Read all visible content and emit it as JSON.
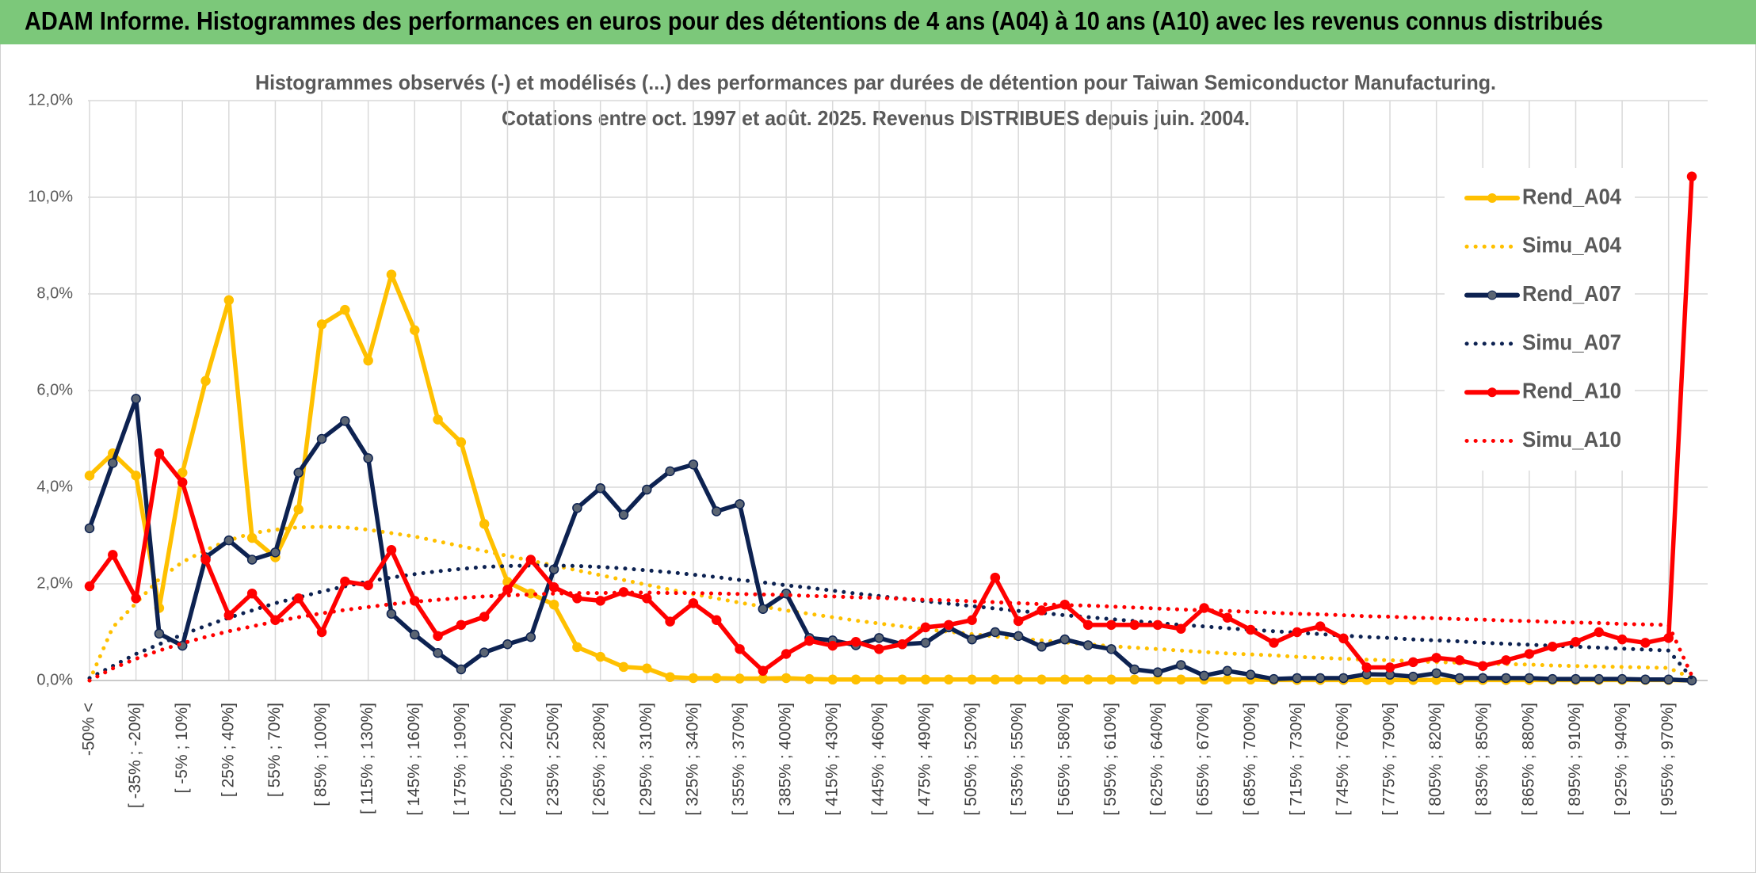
{
  "header": {
    "title": "ADAM Informe. Histogrammes des performances en euros pour des détentions de 4 ans (A04) à 10 ans (A10) avec les revenus connus distribués"
  },
  "chart_data": {
    "type": "line",
    "title": [
      "Histogrammes observés (-) et modélisés (...) des performances par durées de détention pour Taiwan Semiconductor Manufacturing.",
      "Cotations entre oct. 1997 et août. 2025. Revenus DISTRIBUES depuis juin. 2004."
    ],
    "categories": [
      "-50% <",
      null,
      "[ -35% ; -20%]",
      null,
      "[ -5% ; 10%]",
      null,
      "[ 25% ; 40%]",
      null,
      "[ 55% ; 70%]",
      null,
      "[ 85% ; 100%]",
      null,
      "[ 115% ; 130%]",
      null,
      "[ 145% ; 160%]",
      null,
      "[ 175% ; 190%]",
      null,
      "[ 205% ; 220%]",
      null,
      "[ 235% ; 250%]",
      null,
      "[ 265% ; 280%]",
      null,
      "[ 295% ; 310%]",
      null,
      "[ 325% ; 340%]",
      null,
      "[ 355% ; 370%]",
      null,
      "[ 385% ; 400%]",
      null,
      "[ 415% ; 430%]",
      null,
      "[ 445% ; 460%]",
      null,
      "[ 475% ; 490%]",
      null,
      "[ 505% ; 520%]",
      null,
      "[ 535% ; 550%]",
      null,
      "[ 565% ; 580%]",
      null,
      "[ 595% ; 610%]",
      null,
      "[ 625% ; 640%]",
      null,
      "[ 655% ; 670%]",
      null,
      "[ 685% ; 700%]",
      null,
      "[ 715% ; 730%]",
      null,
      "[ 745% ; 760%]",
      null,
      "[ 775% ; 790%]",
      null,
      "[ 805% ; 820%]",
      null,
      "[ 835% ; 850%]",
      null,
      "[ 865% ; 880%]",
      null,
      "[ 895% ; 910%]",
      null,
      "[ 925% ; 940%]",
      null,
      "[ 955% ; 970%]",
      null
    ],
    "ylim": [
      0,
      12
    ],
    "yticks": [
      {
        "value": 0,
        "label": "0,0%"
      },
      {
        "value": 2,
        "label": "2,0%"
      },
      {
        "value": 4,
        "label": "4,0%"
      },
      {
        "value": 6,
        "label": "6,0%"
      },
      {
        "value": 8,
        "label": "8,0%"
      },
      {
        "value": 10,
        "label": "10,0%"
      },
      {
        "value": 12,
        "label": "12,0%"
      }
    ],
    "grid": true,
    "legend": "right",
    "series": [
      {
        "name": "Rend_A04",
        "color": "#ffc000",
        "dash": "solid",
        "values": [
          4.24,
          4.7,
          4.24,
          1.5,
          4.3,
          6.2,
          7.87,
          2.95,
          2.55,
          3.54,
          7.37,
          7.67,
          6.62,
          8.4,
          7.25,
          5.4,
          4.93,
          3.24,
          2.04,
          1.8,
          1.57,
          0.69,
          0.49,
          0.28,
          0.25,
          0.07,
          0.05,
          0.05,
          0.04,
          0.04,
          0.05,
          0.03,
          0.02,
          0.02,
          0.02,
          0.02,
          0.02,
          0.02,
          0.02,
          0.02,
          0.02,
          0.02,
          0.02,
          0.02,
          0.02,
          0.02,
          0.02,
          0.02,
          0.02,
          0.02,
          0.02,
          0.01,
          0.01,
          0.01,
          0.01,
          0.01,
          0.01,
          0.01,
          0.01,
          0.01,
          0.01,
          0.01,
          0.01,
          0.01,
          0.01,
          0.01,
          0.01,
          0.01,
          0.01,
          0
        ]
      },
      {
        "name": "Simu_A04",
        "color": "#ffc000",
        "dash": "dotted",
        "values": [
          0,
          1.1,
          1.6,
          2.1,
          2.45,
          2.7,
          2.9,
          3.05,
          3.12,
          3.17,
          3.18,
          3.17,
          3.12,
          3.05,
          2.98,
          2.88,
          2.78,
          2.68,
          2.58,
          2.48,
          2.38,
          2.28,
          2.18,
          2.08,
          1.98,
          1.88,
          1.79,
          1.7,
          1.61,
          1.53,
          1.45,
          1.38,
          1.31,
          1.24,
          1.18,
          1.12,
          1.06,
          1.01,
          0.96,
          0.91,
          0.87,
          0.83,
          0.79,
          0.75,
          0.71,
          0.68,
          0.65,
          0.62,
          0.59,
          0.56,
          0.54,
          0.52,
          0.49,
          0.47,
          0.45,
          0.43,
          0.42,
          0.4,
          0.38,
          0.37,
          0.35,
          0.34,
          0.33,
          0.31,
          0.3,
          0.29,
          0.28,
          0.27,
          0.26,
          0.05
        ]
      },
      {
        "name": "Rend_A07",
        "color": "#0d2251",
        "dash": "solid",
        "values": [
          3.15,
          4.5,
          5.83,
          0.97,
          0.72,
          2.55,
          2.9,
          2.5,
          2.65,
          4.3,
          5.0,
          5.37,
          4.6,
          1.38,
          0.95,
          0.57,
          0.23,
          0.58,
          0.75,
          0.9,
          2.3,
          3.57,
          3.98,
          3.43,
          3.95,
          4.33,
          4.47,
          3.5,
          3.65,
          1.48,
          1.8,
          0.88,
          0.83,
          0.73,
          0.88,
          0.75,
          0.78,
          1.1,
          0.85,
          1.0,
          0.92,
          0.7,
          0.85,
          0.73,
          0.65,
          0.23,
          0.17,
          0.32,
          0.1,
          0.2,
          0.12,
          0.03,
          0.05,
          0.05,
          0.05,
          0.13,
          0.12,
          0.08,
          0.15,
          0.05,
          0.05,
          0.05,
          0.05,
          0.03,
          0.03,
          0.03,
          0.03,
          0.02,
          0.02,
          0
        ]
      },
      {
        "name": "Simu_A07",
        "color": "#0d2251",
        "dash": "dotted",
        "values": [
          0.05,
          0.3,
          0.55,
          0.75,
          0.95,
          1.13,
          1.3,
          1.45,
          1.6,
          1.72,
          1.84,
          1.95,
          2.05,
          2.13,
          2.2,
          2.26,
          2.31,
          2.35,
          2.37,
          2.38,
          2.38,
          2.37,
          2.35,
          2.32,
          2.28,
          2.24,
          2.19,
          2.14,
          2.08,
          2.03,
          1.97,
          1.92,
          1.86,
          1.8,
          1.75,
          1.69,
          1.64,
          1.59,
          1.54,
          1.49,
          1.44,
          1.4,
          1.35,
          1.31,
          1.27,
          1.23,
          1.19,
          1.15,
          1.12,
          1.08,
          1.05,
          1.02,
          0.99,
          0.96,
          0.93,
          0.9,
          0.88,
          0.85,
          0.83,
          0.81,
          0.78,
          0.76,
          0.74,
          0.72,
          0.7,
          0.68,
          0.66,
          0.64,
          0.62,
          0.05
        ]
      },
      {
        "name": "Rend_A10",
        "color": "#ff0000",
        "dash": "solid",
        "values": [
          1.95,
          2.6,
          1.7,
          4.7,
          4.1,
          2.5,
          1.35,
          1.8,
          1.25,
          1.7,
          1.0,
          2.05,
          1.97,
          2.7,
          1.65,
          0.92,
          1.15,
          1.32,
          1.88,
          2.5,
          1.93,
          1.7,
          1.65,
          1.83,
          1.7,
          1.22,
          1.6,
          1.25,
          0.65,
          0.2,
          0.55,
          0.82,
          0.72,
          0.8,
          0.65,
          0.75,
          1.1,
          1.15,
          1.25,
          2.13,
          1.23,
          1.45,
          1.57,
          1.15,
          1.15,
          1.15,
          1.15,
          1.07,
          1.5,
          1.3,
          1.05,
          0.78,
          1.0,
          1.12,
          0.87,
          0.27,
          0.27,
          0.38,
          0.47,
          0.42,
          0.3,
          0.42,
          0.55,
          0.7,
          0.8,
          1.0,
          0.85,
          0.78,
          0.88,
          10.43
        ]
      },
      {
        "name": "Simu_A10",
        "color": "#ff0000",
        "dash": "dotted",
        "values": [
          0,
          0.25,
          0.45,
          0.62,
          0.77,
          0.9,
          1.02,
          1.12,
          1.22,
          1.31,
          1.39,
          1.46,
          1.52,
          1.58,
          1.63,
          1.67,
          1.71,
          1.74,
          1.76,
          1.78,
          1.8,
          1.81,
          1.81,
          1.82,
          1.82,
          1.81,
          1.81,
          1.8,
          1.79,
          1.78,
          1.77,
          1.75,
          1.74,
          1.72,
          1.71,
          1.69,
          1.67,
          1.66,
          1.64,
          1.62,
          1.6,
          1.58,
          1.56,
          1.55,
          1.53,
          1.51,
          1.49,
          1.47,
          1.45,
          1.44,
          1.42,
          1.4,
          1.38,
          1.37,
          1.35,
          1.33,
          1.32,
          1.3,
          1.29,
          1.27,
          1.26,
          1.24,
          1.23,
          1.21,
          1.2,
          1.19,
          1.17,
          1.16,
          1.15,
          0.1
        ]
      }
    ]
  }
}
